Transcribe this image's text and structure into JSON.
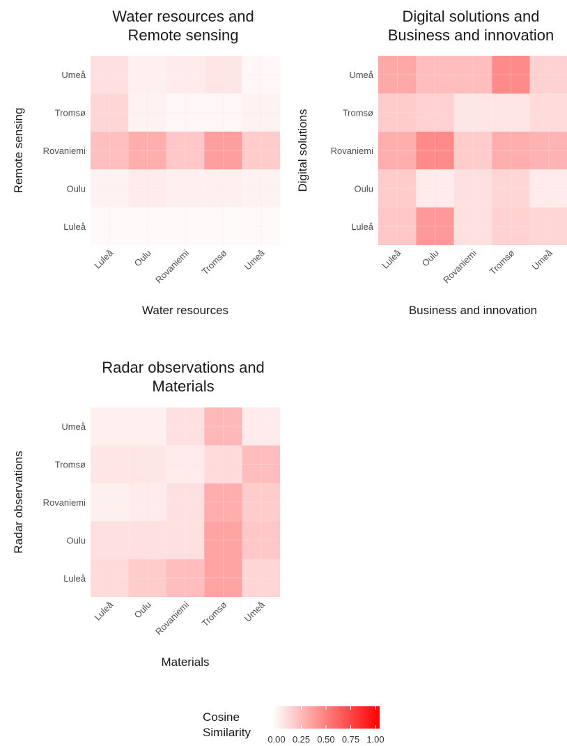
{
  "chart_data": [
    {
      "type": "heatmap",
      "title": [
        "Water resources and",
        "Remote sensing"
      ],
      "xlabel": "Water resources",
      "ylabel": "Remote sensing",
      "x_categories": [
        "Luleå",
        "Oulu",
        "Rovaniemi",
        "Tromsø",
        "Umeå"
      ],
      "y_categories": [
        "Luleå",
        "Oulu",
        "Rovaniemi",
        "Tromsø",
        "Umeå"
      ],
      "values": [
        [
          0.02,
          0.02,
          0.02,
          0.02,
          0.02
        ],
        [
          0.05,
          0.08,
          0.06,
          0.06,
          0.05
        ],
        [
          0.25,
          0.32,
          0.22,
          0.38,
          0.2
        ],
        [
          0.16,
          0.05,
          0.03,
          0.03,
          0.05
        ],
        [
          0.12,
          0.06,
          0.08,
          0.1,
          0.03
        ]
      ]
    },
    {
      "type": "heatmap",
      "title": [
        "Digital solutions and",
        "Business and innovation"
      ],
      "xlabel": "Business and innovation",
      "ylabel": "Digital solutions",
      "x_categories": [
        "Luleå",
        "Oulu",
        "Rovaniemi",
        "Tromsø",
        "Umeå"
      ],
      "y_categories": [
        "Luleå",
        "Oulu",
        "Rovaniemi",
        "Tromsø",
        "Umeå"
      ],
      "values": [
        [
          0.22,
          0.4,
          0.12,
          0.18,
          0.16
        ],
        [
          0.2,
          0.08,
          0.12,
          0.16,
          0.08
        ],
        [
          0.32,
          0.46,
          0.2,
          0.32,
          0.3
        ],
        [
          0.2,
          0.18,
          0.1,
          0.1,
          0.14
        ],
        [
          0.34,
          0.26,
          0.26,
          0.46,
          0.18
        ]
      ]
    },
    {
      "type": "heatmap",
      "title": [
        "Radar observations and",
        "Materials"
      ],
      "xlabel": "Materials",
      "ylabel": "Radar observations",
      "x_categories": [
        "Luleå",
        "Oulu",
        "Rovaniemi",
        "Tromsø",
        "Umeå"
      ],
      "y_categories": [
        "Luleå",
        "Oulu",
        "Rovaniemi",
        "Tromsø",
        "Umeå"
      ],
      "values": [
        [
          0.14,
          0.2,
          0.26,
          0.36,
          0.16
        ],
        [
          0.12,
          0.12,
          0.12,
          0.36,
          0.22
        ],
        [
          0.06,
          0.08,
          0.12,
          0.32,
          0.2
        ],
        [
          0.1,
          0.1,
          0.08,
          0.14,
          0.26
        ],
        [
          0.06,
          0.06,
          0.12,
          0.28,
          0.08
        ]
      ]
    }
  ],
  "legend": {
    "title": [
      "Cosine",
      "Similarity"
    ],
    "breaks": [
      "0.00",
      "0.25",
      "0.50",
      "0.75",
      "1.00"
    ],
    "low_color": "#ffffff",
    "high_color": "#ff0000"
  }
}
